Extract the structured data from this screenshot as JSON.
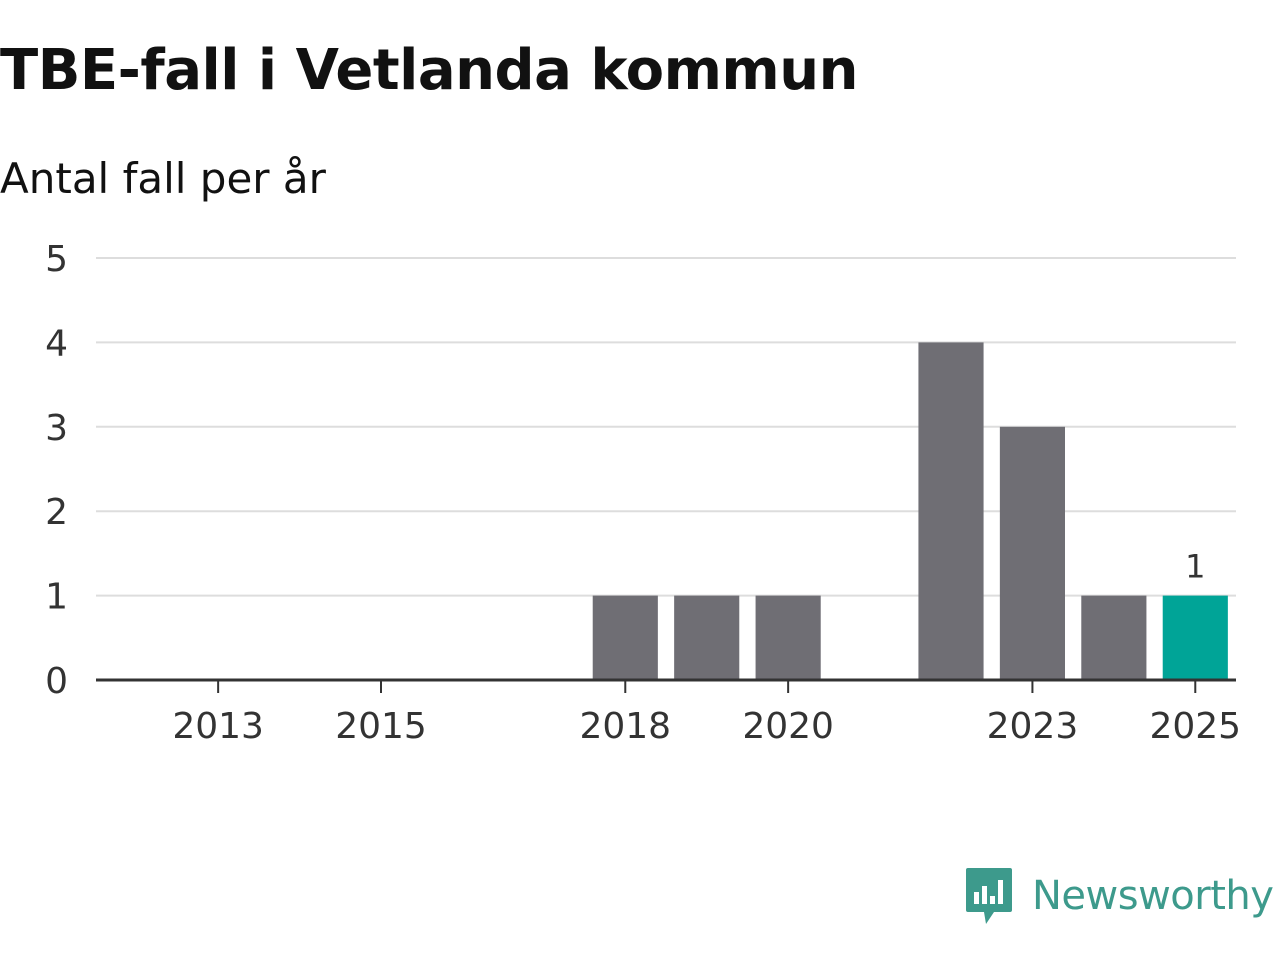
{
  "header": {
    "title": "TBE-fall i Vetlanda kommun",
    "subtitle": "Antal fall per år"
  },
  "brand": {
    "name": "Newsworthy",
    "icon": "newsworthy-logo-icon",
    "color": "#3d9a8c"
  },
  "chart_data": {
    "type": "bar",
    "title": "TBE-fall i Vetlanda kommun",
    "subtitle": "Antal fall per år",
    "xlabel": "",
    "ylabel": "",
    "categories": [
      "2012",
      "2013",
      "2014",
      "2015",
      "2016",
      "2017",
      "2018",
      "2019",
      "2020",
      "2021",
      "2022",
      "2023",
      "2024",
      "2025"
    ],
    "values": [
      0,
      0,
      0,
      0,
      0,
      0,
      1,
      1,
      1,
      0,
      4,
      3,
      1,
      1
    ],
    "highlight_index": 13,
    "highlight_label": "1",
    "x_tick_labels": [
      "2013",
      "2015",
      "2018",
      "2020",
      "2023",
      "2025"
    ],
    "y_ticks": [
      "0",
      "1",
      "2",
      "3",
      "4",
      "5"
    ],
    "ylim": [
      0,
      5
    ],
    "grid": true,
    "colors": {
      "bar": "#6f6e74",
      "highlight": "#00a497",
      "grid": "#dddddd",
      "axis": "#333333"
    }
  }
}
